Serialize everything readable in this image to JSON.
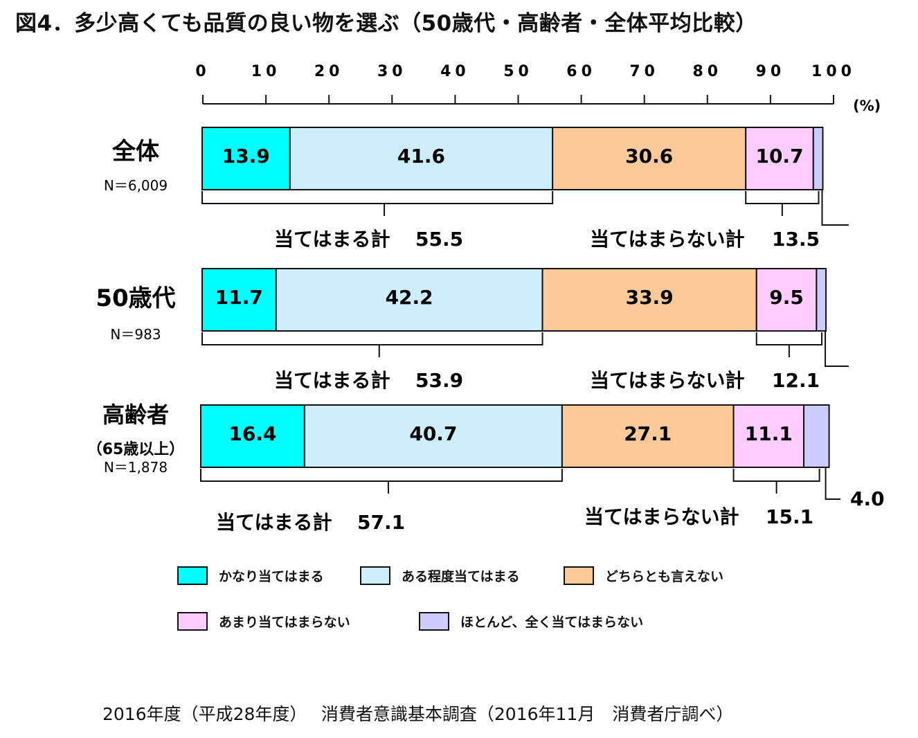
{
  "title": "図4．多少高くても品質の良い物を選ぶ（50歳代・高齢者・全体平均比較）",
  "source": "2016年度（平成28年度）　 消費者意識基本調査（2016年11月　消費者庁調べ）",
  "axis_unit": "(%)",
  "chart_data": {
    "type": "bar",
    "stacked": true,
    "orientation": "horizontal",
    "xlim": [
      0,
      100
    ],
    "x_ticks": [
      0,
      10,
      20,
      30,
      40,
      50,
      60,
      70,
      80,
      90,
      100
    ],
    "x_tick_labels": [
      "0",
      "10",
      "20",
      "30",
      "40",
      "50",
      "60",
      "70",
      "80",
      "90",
      "100"
    ],
    "grid": false,
    "legend_position": "bottom",
    "categories": [
      {
        "name": "全体",
        "sub": "",
        "n": "N＝6,009"
      },
      {
        "name": "50歳代",
        "sub": "",
        "n": "N＝983"
      },
      {
        "name": "高齢者",
        "sub": "（65歳以上）",
        "n": "N＝1,878"
      }
    ],
    "series": [
      {
        "name": "かなり当てはまる",
        "color": "#00ffff",
        "values": [
          13.9,
          11.7,
          16.4
        ]
      },
      {
        "name": "ある程度当てはまる",
        "color": "#cdeefc",
        "values": [
          41.6,
          42.2,
          40.7
        ]
      },
      {
        "name": "どちらとも言えない",
        "color": "#fcc999",
        "values": [
          30.6,
          33.9,
          27.1
        ]
      },
      {
        "name": "あまり当てはまらない",
        "color": "#ffccff",
        "values": [
          10.7,
          9.5,
          11.1
        ]
      },
      {
        "name": "ほとんど、全く当てはまらない",
        "color": "#ccccff",
        "values": [
          null,
          null,
          4.0
        ]
      }
    ],
    "value_labels": [
      [
        "13.9",
        "41.6",
        "30.6",
        "10.7",
        ""
      ],
      [
        "11.7",
        "42.2",
        "33.9",
        "9.5",
        ""
      ],
      [
        "16.4",
        "40.7",
        "27.1",
        "11.1",
        "4.0"
      ]
    ],
    "summaries": [
      {
        "agree_label": "当てはまる計",
        "agree_value": "55.5",
        "disagree_label": "当てはまらない計",
        "disagree_value": "13.5"
      },
      {
        "agree_label": "当てはまる計",
        "agree_value": "53.9",
        "disagree_label": "当てはまらない計",
        "disagree_value": "12.1"
      },
      {
        "agree_label": "当てはまる計",
        "agree_value": "57.1",
        "disagree_label": "当てはまらない計",
        "disagree_value": "15.1"
      }
    ]
  }
}
